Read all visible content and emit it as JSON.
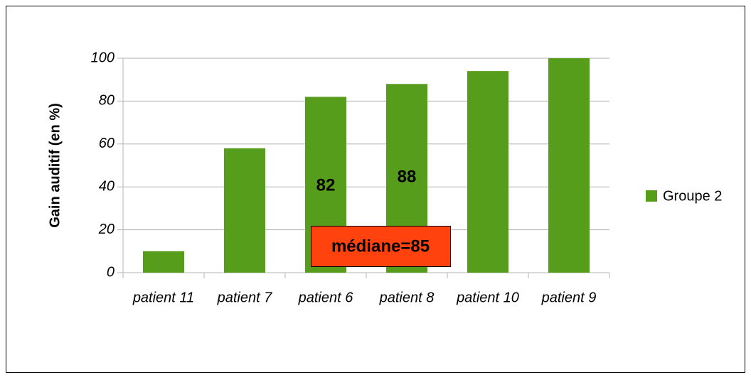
{
  "chart_data": {
    "type": "bar",
    "y_label": "Gain auditif (en %)",
    "categories": [
      "patient 11",
      "patient 7",
      "patient 6",
      "patient 8",
      "patient 10",
      "patient 9"
    ],
    "series": [
      {
        "name": "Groupe 2",
        "color": "#579d1c",
        "values": [
          10,
          58,
          82,
          88,
          94,
          100
        ],
        "value_labels": [
          null,
          null,
          "82",
          "88",
          null,
          null
        ]
      }
    ],
    "ylim": [
      0,
      100
    ],
    "yticks": [
      0,
      20,
      40,
      60,
      80,
      100
    ],
    "grid": true,
    "legend": "right",
    "annotation": "médiane=85"
  }
}
